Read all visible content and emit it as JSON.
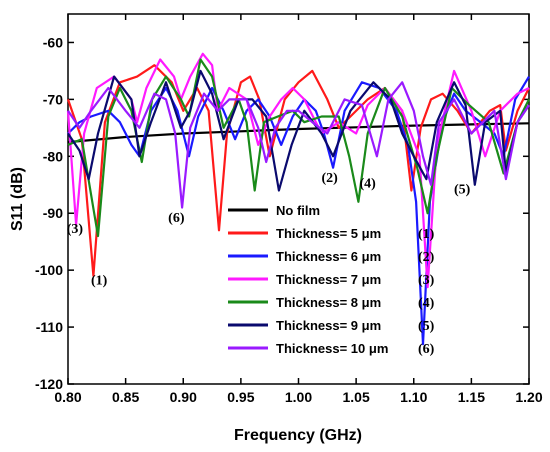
{
  "chart_data": {
    "type": "line",
    "xlabel": "Frequency (GHz)",
    "ylabel": "S11 (dB)",
    "xlim": [
      0.8,
      1.2
    ],
    "ylim": [
      -120,
      -55
    ],
    "x_ticks": [
      0.8,
      0.85,
      0.9,
      0.95,
      1.0,
      1.05,
      1.1,
      1.15,
      1.2
    ],
    "x_tick_labels": [
      "0.80",
      "0.85",
      "0.90",
      "0.95",
      "1.00",
      "1.05",
      "1.10",
      "1.15",
      "1.20"
    ],
    "y_ticks": [
      -120,
      -110,
      -100,
      -90,
      -80,
      -70,
      -60
    ],
    "y_tick_labels": [
      "-120",
      "-110",
      "-100",
      "-90",
      "-80",
      "-70",
      "-60"
    ],
    "legend_position": "center-right",
    "series": [
      {
        "name": "No film",
        "mark": "",
        "color": "#000000",
        "points": [
          [
            0.8,
            -77.5
          ],
          [
            0.85,
            -76.6
          ],
          [
            0.9,
            -76.0
          ],
          [
            0.95,
            -75.6
          ],
          [
            1.0,
            -75.2
          ],
          [
            1.05,
            -74.9
          ],
          [
            1.1,
            -74.6
          ],
          [
            1.15,
            -74.4
          ],
          [
            1.2,
            -74.2
          ]
        ]
      },
      {
        "name": "Thickness= 5 μm",
        "mark": "(1)",
        "color": "#ff1a1a",
        "points": [
          [
            0.8,
            -70
          ],
          [
            0.812,
            -77
          ],
          [
            0.822,
            -101
          ],
          [
            0.832,
            -74
          ],
          [
            0.845,
            -67
          ],
          [
            0.86,
            -66
          ],
          [
            0.875,
            -64
          ],
          [
            0.89,
            -67
          ],
          [
            0.9,
            -72
          ],
          [
            0.912,
            -68
          ],
          [
            0.922,
            -72
          ],
          [
            0.931,
            -93
          ],
          [
            0.938,
            -76
          ],
          [
            0.95,
            -67
          ],
          [
            0.958,
            -66
          ],
          [
            0.966,
            -70
          ],
          [
            0.975,
            -80
          ],
          [
            0.988,
            -70
          ],
          [
            1.0,
            -67
          ],
          [
            1.012,
            -65
          ],
          [
            1.025,
            -70
          ],
          [
            1.035,
            -75
          ],
          [
            1.045,
            -73
          ],
          [
            1.06,
            -70
          ],
          [
            1.075,
            -68
          ],
          [
            1.09,
            -72
          ],
          [
            1.098,
            -86
          ],
          [
            1.106,
            -75
          ],
          [
            1.115,
            -70
          ],
          [
            1.125,
            -69
          ],
          [
            1.138,
            -72
          ],
          [
            1.15,
            -76
          ],
          [
            1.158,
            -74
          ],
          [
            1.166,
            -72
          ],
          [
            1.175,
            -71
          ],
          [
            1.18,
            -79
          ],
          [
            1.19,
            -72
          ],
          [
            1.2,
            -68
          ]
        ]
      },
      {
        "name": "Thickness= 6 μm",
        "mark": "(2)",
        "color": "#1a1aff",
        "points": [
          [
            0.8,
            -76
          ],
          [
            0.81,
            -74
          ],
          [
            0.82,
            -73
          ],
          [
            0.835,
            -72
          ],
          [
            0.845,
            -74
          ],
          [
            0.855,
            -78
          ],
          [
            0.862,
            -80
          ],
          [
            0.872,
            -72
          ],
          [
            0.885,
            -68
          ],
          [
            0.895,
            -72
          ],
          [
            0.905,
            -80
          ],
          [
            0.913,
            -73
          ],
          [
            0.925,
            -68
          ],
          [
            0.935,
            -72
          ],
          [
            0.945,
            -77
          ],
          [
            0.955,
            -72
          ],
          [
            0.965,
            -70
          ],
          [
            0.975,
            -73
          ],
          [
            0.985,
            -78
          ],
          [
            0.995,
            -73
          ],
          [
            1.005,
            -70
          ],
          [
            1.015,
            -72
          ],
          [
            1.022,
            -76
          ],
          [
            1.03,
            -82
          ],
          [
            1.04,
            -72
          ],
          [
            1.055,
            -67
          ],
          [
            1.07,
            -68
          ],
          [
            1.085,
            -72
          ],
          [
            1.095,
            -78
          ],
          [
            1.102,
            -88
          ],
          [
            1.108,
            -113
          ],
          [
            1.114,
            -88
          ],
          [
            1.125,
            -74
          ],
          [
            1.135,
            -69
          ],
          [
            1.145,
            -72
          ],
          [
            1.158,
            -74
          ],
          [
            1.17,
            -76
          ],
          [
            1.178,
            -80
          ],
          [
            1.188,
            -70
          ],
          [
            1.2,
            -66
          ]
        ]
      },
      {
        "name": "Thickness= 7 μm",
        "mark": "(3)",
        "color": "#ff1aff",
        "points": [
          [
            0.8,
            -72
          ],
          [
            0.807,
            -92
          ],
          [
            0.814,
            -76
          ],
          [
            0.825,
            -68
          ],
          [
            0.84,
            -66
          ],
          [
            0.855,
            -70
          ],
          [
            0.86,
            -74
          ],
          [
            0.868,
            -68
          ],
          [
            0.88,
            -63
          ],
          [
            0.892,
            -66
          ],
          [
            0.898,
            -70
          ],
          [
            0.906,
            -66
          ],
          [
            0.917,
            -62
          ],
          [
            0.925,
            -64
          ],
          [
            0.93,
            -72
          ],
          [
            0.94,
            -68
          ],
          [
            0.955,
            -70
          ],
          [
            0.965,
            -78
          ],
          [
            0.975,
            -73
          ],
          [
            0.985,
            -70
          ],
          [
            0.995,
            -68
          ],
          [
            1.005,
            -70
          ],
          [
            1.02,
            -76
          ],
          [
            1.035,
            -74
          ],
          [
            1.05,
            -76
          ],
          [
            1.06,
            -71
          ],
          [
            1.075,
            -68
          ],
          [
            1.09,
            -72
          ],
          [
            1.105,
            -80
          ],
          [
            1.112,
            -103
          ],
          [
            1.12,
            -78
          ],
          [
            1.135,
            -65
          ],
          [
            1.15,
            -72
          ],
          [
            1.162,
            -80
          ],
          [
            1.175,
            -72
          ],
          [
            1.19,
            -69
          ],
          [
            1.2,
            -68
          ]
        ]
      },
      {
        "name": "Thickness= 8 μm",
        "mark": "(4)",
        "color": "#1a8a1a",
        "points": [
          [
            0.8,
            -78
          ],
          [
            0.812,
            -77
          ],
          [
            0.826,
            -94
          ],
          [
            0.835,
            -73
          ],
          [
            0.845,
            -68
          ],
          [
            0.855,
            -72
          ],
          [
            0.864,
            -81
          ],
          [
            0.873,
            -70
          ],
          [
            0.885,
            -66
          ],
          [
            0.898,
            -70
          ],
          [
            0.905,
            -73
          ],
          [
            0.915,
            -63
          ],
          [
            0.925,
            -66
          ],
          [
            0.935,
            -75
          ],
          [
            0.948,
            -70
          ],
          [
            0.955,
            -74
          ],
          [
            0.962,
            -86
          ],
          [
            0.97,
            -74
          ],
          [
            0.982,
            -73
          ],
          [
            0.995,
            -72
          ],
          [
            1.005,
            -74
          ],
          [
            1.02,
            -73
          ],
          [
            1.035,
            -73
          ],
          [
            1.044,
            -80
          ],
          [
            1.052,
            -88
          ],
          [
            1.06,
            -76
          ],
          [
            1.075,
            -68
          ],
          [
            1.09,
            -73
          ],
          [
            1.103,
            -82
          ],
          [
            1.112,
            -90
          ],
          [
            1.12,
            -80
          ],
          [
            1.133,
            -68
          ],
          [
            1.148,
            -71
          ],
          [
            1.165,
            -74
          ],
          [
            1.178,
            -83
          ],
          [
            1.19,
            -74
          ],
          [
            1.2,
            -70
          ]
        ]
      },
      {
        "name": "Thickness= 9 μm",
        "mark": "(5)",
        "color": "#0a0a6e",
        "points": [
          [
            0.8,
            -76
          ],
          [
            0.81,
            -79
          ],
          [
            0.818,
            -84
          ],
          [
            0.826,
            -76
          ],
          [
            0.84,
            -66
          ],
          [
            0.855,
            -70
          ],
          [
            0.862,
            -80
          ],
          [
            0.872,
            -74
          ],
          [
            0.885,
            -67
          ],
          [
            0.898,
            -75
          ],
          [
            0.906,
            -72
          ],
          [
            0.915,
            -65
          ],
          [
            0.925,
            -69
          ],
          [
            0.935,
            -77
          ],
          [
            0.948,
            -70
          ],
          [
            0.96,
            -70
          ],
          [
            0.972,
            -73
          ],
          [
            0.983,
            -86
          ],
          [
            0.994,
            -78
          ],
          [
            1.005,
            -72
          ],
          [
            1.02,
            -76
          ],
          [
            1.03,
            -80
          ],
          [
            1.045,
            -72
          ],
          [
            1.065,
            -67
          ],
          [
            1.08,
            -70
          ],
          [
            1.09,
            -76
          ],
          [
            1.1,
            -80
          ],
          [
            1.111,
            -84
          ],
          [
            1.12,
            -74
          ],
          [
            1.135,
            -67
          ],
          [
            1.145,
            -71
          ],
          [
            1.153,
            -85
          ],
          [
            1.162,
            -74
          ],
          [
            1.175,
            -72
          ],
          [
            1.18,
            -83
          ],
          [
            1.19,
            -74
          ],
          [
            1.2,
            -71
          ]
        ]
      },
      {
        "name": "Thickness= 10 μm",
        "mark": "(6)",
        "color": "#9a1aff",
        "points": [
          [
            0.8,
            -72
          ],
          [
            0.81,
            -75
          ],
          [
            0.82,
            -72
          ],
          [
            0.835,
            -68
          ],
          [
            0.85,
            -72
          ],
          [
            0.862,
            -75
          ],
          [
            0.875,
            -69
          ],
          [
            0.885,
            -70
          ],
          [
            0.893,
            -76
          ],
          [
            0.899,
            -89
          ],
          [
            0.906,
            -75
          ],
          [
            0.918,
            -69
          ],
          [
            0.93,
            -72
          ],
          [
            0.94,
            -70
          ],
          [
            0.955,
            -70
          ],
          [
            0.965,
            -75
          ],
          [
            0.972,
            -81
          ],
          [
            0.98,
            -75
          ],
          [
            0.99,
            -72
          ],
          [
            1.0,
            -72
          ],
          [
            1.012,
            -74
          ],
          [
            1.025,
            -76
          ],
          [
            1.04,
            -70
          ],
          [
            1.055,
            -71
          ],
          [
            1.068,
            -80
          ],
          [
            1.078,
            -70
          ],
          [
            1.09,
            -67
          ],
          [
            1.1,
            -72
          ],
          [
            1.108,
            -80
          ],
          [
            1.115,
            -85
          ],
          [
            1.122,
            -74
          ],
          [
            1.135,
            -70
          ],
          [
            1.15,
            -76
          ],
          [
            1.16,
            -74
          ],
          [
            1.17,
            -72
          ],
          [
            1.18,
            -84
          ],
          [
            1.19,
            -74
          ],
          [
            1.2,
            -71
          ]
        ]
      }
    ],
    "annotations": [
      {
        "text": "(3)",
        "x": 0.806,
        "y": -93.5
      },
      {
        "text": "(1)",
        "x": 0.827,
        "y": -102.5
      },
      {
        "text": "(6)",
        "x": 0.894,
        "y": -91.5
      },
      {
        "text": "(2)",
        "x": 1.027,
        "y": -84.5
      },
      {
        "text": "(4)",
        "x": 1.06,
        "y": -85.5
      },
      {
        "text": "(5)",
        "x": 1.142,
        "y": -86.5
      }
    ]
  }
}
